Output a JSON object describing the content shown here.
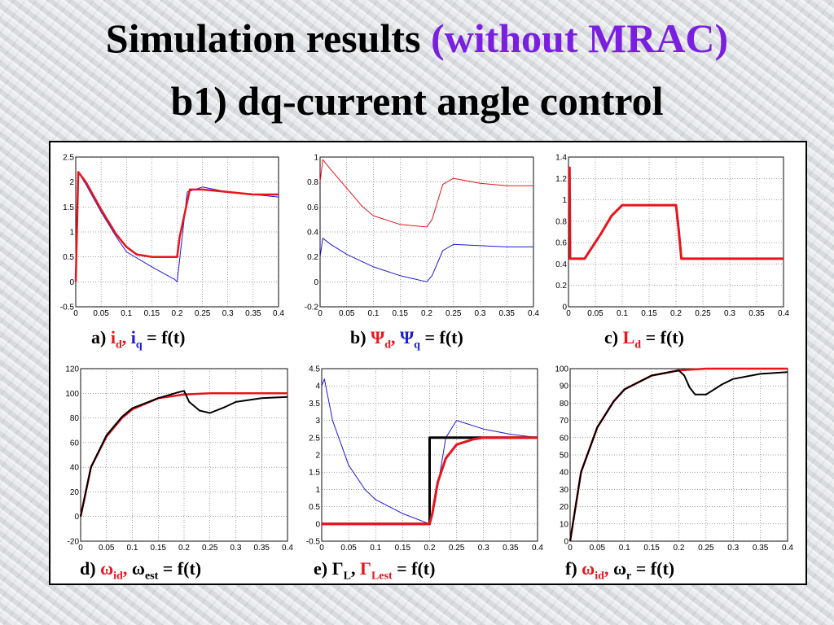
{
  "title": {
    "line1_main": "Simulation results",
    "line1_highlight": "(without MRAC)",
    "line2": "b1) dq-current angle control"
  },
  "captions": {
    "a": {
      "prefix": "a)",
      "s1": "i",
      "s1_sub": "d",
      "sep": ",",
      "s2": "i",
      "s2_sub": "q",
      "suffix": "= f(t)"
    },
    "b": {
      "prefix": "b)",
      "s1": "Ψ",
      "s1_sub": "d",
      "sep": ",",
      "s2": "Ψ",
      "s2_sub": "q",
      "suffix": "= f(t)"
    },
    "c": {
      "prefix": "c)",
      "s1": "L",
      "s1_sub": "d",
      "suffix": "= f(t)"
    },
    "d": {
      "prefix": "d)",
      "s1": "ω",
      "s1_sub": "id",
      "sep": ",",
      "s2": "ω",
      "s2_sub": "est",
      "suffix": "= f(t)"
    },
    "e": {
      "prefix": "e)",
      "s1": "Γ",
      "s1_sub": "L",
      "sep": ",",
      "s2": "Γ",
      "s2_sub": "Lest",
      "suffix": "= f(t)"
    },
    "f": {
      "prefix": "f)",
      "s1": "ω",
      "s1_sub": "id",
      "sep": ",",
      "s2": "ω",
      "s2_sub": "r",
      "suffix": "= f(t)"
    }
  },
  "colors": {
    "red": "#e8141b",
    "blue": "#1a1ad6",
    "black": "#000000"
  },
  "chart_data": [
    {
      "id": "a",
      "type": "line",
      "xlim": [
        0,
        0.4
      ],
      "ylim": [
        -0.5,
        2.5
      ],
      "grid": true,
      "xticks": [
        "0",
        "0.05",
        "0.1",
        "0.15",
        "0.2",
        "0.25",
        "0.3",
        "0.35",
        "0.4"
      ],
      "yticks": [
        "-0.5",
        "0",
        "0.5",
        "1",
        "1.5",
        "2",
        "2.5"
      ],
      "series": [
        {
          "color": "blue",
          "width": 1,
          "x": [
            0,
            0.005,
            0.02,
            0.05,
            0.08,
            0.1,
            0.15,
            0.195,
            0.2,
            0.22,
            0.25,
            0.3,
            0.35,
            0.4
          ],
          "y": [
            0,
            2.2,
            1.95,
            1.4,
            0.9,
            0.6,
            0.3,
            0.05,
            0.0,
            1.8,
            1.9,
            1.8,
            1.75,
            1.7
          ]
        },
        {
          "color": "red",
          "width": 2.5,
          "x": [
            0,
            0.005,
            0.02,
            0.05,
            0.08,
            0.1,
            0.12,
            0.15,
            0.2,
            0.205,
            0.225,
            0.25,
            0.3,
            0.35,
            0.4
          ],
          "y": [
            0,
            2.2,
            2.0,
            1.45,
            0.95,
            0.7,
            0.55,
            0.5,
            0.5,
            0.9,
            1.85,
            1.85,
            1.8,
            1.75,
            1.75
          ]
        }
      ]
    },
    {
      "id": "b",
      "type": "line",
      "xlim": [
        0,
        0.4
      ],
      "ylim": [
        -0.2,
        1
      ],
      "grid": true,
      "xticks": [
        "0",
        "0.05",
        "0.1",
        "0.15",
        "0.2",
        "0.25",
        "0.3",
        "0.35",
        "0.4"
      ],
      "yticks": [
        "-0.2",
        "0",
        "0.2",
        "0.4",
        "0.6",
        "0.8",
        "1"
      ],
      "series": [
        {
          "color": "red",
          "width": 1,
          "x": [
            0,
            0.005,
            0.02,
            0.05,
            0.08,
            0.1,
            0.15,
            0.2,
            0.21,
            0.23,
            0.25,
            0.3,
            0.35,
            0.4
          ],
          "y": [
            0.8,
            0.98,
            0.9,
            0.75,
            0.6,
            0.53,
            0.46,
            0.44,
            0.5,
            0.78,
            0.83,
            0.79,
            0.77,
            0.77
          ]
        },
        {
          "color": "blue",
          "width": 1,
          "x": [
            0,
            0.005,
            0.02,
            0.05,
            0.1,
            0.15,
            0.2,
            0.21,
            0.23,
            0.25,
            0.3,
            0.35,
            0.4
          ],
          "y": [
            0.2,
            0.35,
            0.3,
            0.22,
            0.12,
            0.05,
            0.0,
            0.05,
            0.25,
            0.3,
            0.29,
            0.28,
            0.28
          ]
        }
      ]
    },
    {
      "id": "c",
      "type": "line",
      "xlim": [
        0,
        0.4
      ],
      "ylim": [
        0,
        1.4
      ],
      "grid": true,
      "xticks": [
        "0",
        "0.05",
        "0.1",
        "0.15",
        "0.2",
        "0.25",
        "0.3",
        "0.35",
        "0.4"
      ],
      "yticks": [
        "0",
        "0.2",
        "0.4",
        "0.6",
        "0.8",
        "1",
        "1.2",
        "1.4"
      ],
      "series": [
        {
          "color": "red",
          "width": 3,
          "x": [
            0.0,
            0.002,
            0.003,
            0.03,
            0.06,
            0.08,
            0.09,
            0.1,
            0.2,
            0.2,
            0.205,
            0.21,
            0.4
          ],
          "y": [
            1.3,
            1.3,
            0.45,
            0.45,
            0.68,
            0.85,
            0.9,
            0.95,
            0.95,
            0.95,
            0.72,
            0.45,
            0.45
          ]
        }
      ]
    },
    {
      "id": "d",
      "type": "line",
      "xlim": [
        0,
        0.4
      ],
      "ylim": [
        -20,
        120
      ],
      "grid": true,
      "xticks": [
        "0",
        "0.05",
        "0.1",
        "0.15",
        "0.2",
        "0.25",
        "0.3",
        "0.35",
        "0.4"
      ],
      "yticks": [
        "-20",
        "0",
        "20",
        "40",
        "60",
        "80",
        "100",
        "120"
      ],
      "series": [
        {
          "color": "red",
          "width": 2.5,
          "x": [
            0,
            0.02,
            0.05,
            0.08,
            0.1,
            0.15,
            0.2,
            0.25,
            0.3,
            0.35,
            0.4
          ],
          "y": [
            0,
            40,
            65,
            80,
            87,
            96,
            99,
            100,
            100,
            100,
            100
          ]
        },
        {
          "color": "black",
          "width": 2,
          "x": [
            0,
            0.02,
            0.05,
            0.08,
            0.1,
            0.15,
            0.19,
            0.2,
            0.21,
            0.23,
            0.25,
            0.28,
            0.3,
            0.35,
            0.4
          ],
          "y": [
            0,
            40,
            66,
            81,
            88,
            96,
            101,
            102,
            93,
            86,
            84,
            89,
            93,
            96,
            97
          ]
        }
      ]
    },
    {
      "id": "e",
      "type": "line",
      "xlim": [
        0,
        0.4
      ],
      "ylim": [
        -0.5,
        4.5
      ],
      "grid": true,
      "xticks": [
        "0",
        "0.05",
        "0.1",
        "0.15",
        "0.2",
        "0.25",
        "0.3",
        "0.35",
        "0.4"
      ],
      "yticks": [
        "-0.5",
        "0",
        "0.5",
        "1",
        "1.5",
        "2",
        "2.5",
        "3",
        "3.5",
        "4",
        "4.5"
      ],
      "series": [
        {
          "color": "blue",
          "width": 1,
          "x": [
            0,
            0.005,
            0.02,
            0.05,
            0.08,
            0.1,
            0.15,
            0.2,
            0.21,
            0.23,
            0.25,
            0.3,
            0.35,
            0.4
          ],
          "y": [
            4.0,
            4.2,
            3.0,
            1.7,
            1.0,
            0.7,
            0.3,
            0.0,
            0.6,
            2.5,
            3.0,
            2.75,
            2.6,
            2.5
          ]
        },
        {
          "color": "black",
          "width": 3,
          "x": [
            0,
            0.2,
            0.2,
            0.4
          ],
          "y": [
            0,
            0,
            2.5,
            2.5
          ]
        },
        {
          "color": "red",
          "width": 3,
          "x": [
            0,
            0.2,
            0.205,
            0.215,
            0.23,
            0.25,
            0.28,
            0.3,
            0.4
          ],
          "y": [
            0,
            0,
            0.3,
            1.2,
            1.9,
            2.3,
            2.45,
            2.5,
            2.5
          ]
        }
      ]
    },
    {
      "id": "f",
      "type": "line",
      "xlim": [
        0,
        0.4
      ],
      "ylim": [
        0,
        100
      ],
      "grid": true,
      "xticks": [
        "0",
        "0.05",
        "0.1",
        "0.15",
        "0.2",
        "0.25",
        "0.3",
        "0.35",
        "0.4"
      ],
      "yticks": [
        "0",
        "10",
        "20",
        "30",
        "40",
        "50",
        "60",
        "70",
        "80",
        "90",
        "100"
      ],
      "series": [
        {
          "color": "red",
          "width": 2.5,
          "x": [
            0,
            0.02,
            0.05,
            0.08,
            0.1,
            0.15,
            0.2,
            0.25,
            0.3,
            0.35,
            0.4
          ],
          "y": [
            0,
            40,
            66,
            81,
            88,
            96,
            99,
            100,
            100,
            100,
            100
          ]
        },
        {
          "color": "black",
          "width": 2,
          "x": [
            0,
            0.02,
            0.05,
            0.08,
            0.1,
            0.15,
            0.2,
            0.21,
            0.22,
            0.23,
            0.25,
            0.28,
            0.3,
            0.35,
            0.4
          ],
          "y": [
            0,
            40,
            66,
            81,
            88,
            96,
            99,
            96,
            89,
            85,
            85,
            91,
            94,
            97,
            98
          ]
        }
      ]
    }
  ]
}
